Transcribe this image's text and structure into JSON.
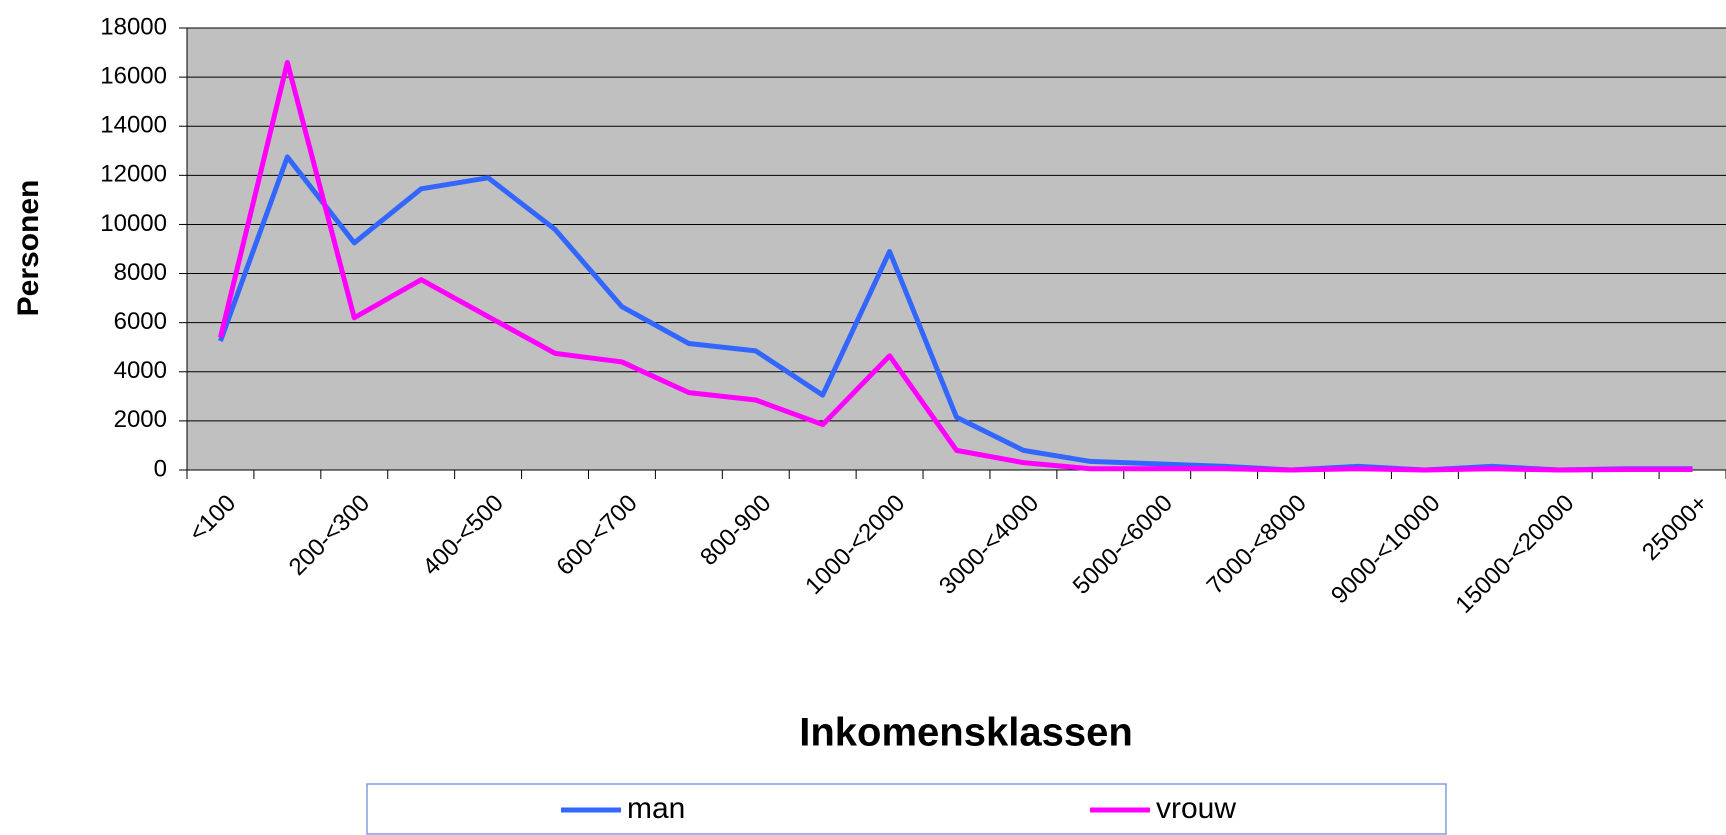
{
  "chart_data": {
    "type": "line",
    "x_label": "Inkomensklassen",
    "y_label": "Personen",
    "categories": [
      "<100",
      null,
      "200-<300",
      null,
      "400-<500",
      null,
      "600-<700",
      null,
      "800-900",
      null,
      "1000-<2000",
      null,
      "3000-<4000",
      null,
      "5000-<6000",
      null,
      "7000-<8000",
      null,
      "9000-<10000",
      null,
      "15000-<20000",
      null,
      "25000+"
    ],
    "series": [
      {
        "name": "man",
        "color": "#3366ff",
        "values": [
          5250,
          12750,
          9250,
          11450,
          11900,
          9800,
          6650,
          5150,
          4850,
          3050,
          8900,
          2150,
          800,
          350,
          250,
          150,
          0,
          150,
          0,
          150,
          0,
          50,
          50
        ]
      },
      {
        "name": "vrouw",
        "color": "#ff00ff",
        "values": [
          5400,
          16600,
          6200,
          7750,
          6250,
          4750,
          4400,
          3150,
          2850,
          1850,
          4650,
          800,
          300,
          50,
          50,
          50,
          0,
          50,
          0,
          50,
          0,
          20,
          20
        ]
      }
    ],
    "ylim": [
      0,
      18000
    ],
    "yticks": [
      0,
      2000,
      4000,
      6000,
      8000,
      10000,
      12000,
      14000,
      16000,
      18000
    ],
    "grid": true,
    "legend": "bottom"
  }
}
